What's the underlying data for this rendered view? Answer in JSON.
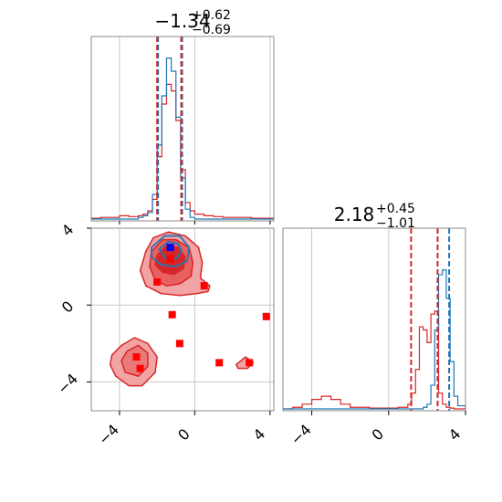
{
  "colors": {
    "blue": "#1f77b4",
    "red": "#d62728",
    "marker_red": "#ff0000",
    "marker_blue": "#0000ff",
    "grid": "#c8c8c8",
    "fill_dark": "#d62728",
    "fill_light": "#f2a3a4"
  },
  "chart_data": {
    "type": "corner",
    "grid": true,
    "parameters": [
      {
        "title_main": "−1.34",
        "title_sup": "+0.62",
        "title_sub": "−0.69",
        "range": [
          -5.5,
          4.2
        ],
        "ticks": [
          -4,
          0,
          4
        ],
        "tick_labels": [
          "−4",
          "0",
          "4"
        ],
        "quantile_lines": {
          "blue": [
            -2.0,
            -0.72
          ],
          "red": [
            -2.0,
            -0.72
          ]
        }
      },
      {
        "title_main": "2.18",
        "title_sup": "+0.45",
        "title_sub": "−1.01",
        "range": [
          -5.5,
          4.0
        ],
        "ticks": [
          -4,
          0,
          4
        ],
        "tick_labels": [
          "−4",
          "0",
          "4"
        ],
        "quantile_lines": {
          "blue": [
            2.55,
            3.15
          ],
          "red": [
            1.17,
            2.55
          ]
        }
      }
    ],
    "hist_1d_param1": {
      "bin_edges": [
        -5.5,
        -5.0,
        -4.5,
        -4.0,
        -3.5,
        -3.0,
        -2.75,
        -2.5,
        -2.25,
        -2.0,
        -1.75,
        -1.5,
        -1.25,
        -1.0,
        -0.75,
        -0.5,
        -0.25,
        0.0,
        0.5,
        1.0,
        1.5,
        2.0,
        2.5,
        3.0,
        3.5,
        4.2
      ],
      "blue": [
        0,
        0,
        0,
        0,
        0,
        0.01,
        0.02,
        0.04,
        0.15,
        0.45,
        0.75,
        0.98,
        0.9,
        0.62,
        0.25,
        0.06,
        0.01,
        0,
        0,
        0,
        0,
        0,
        0,
        0,
        0
      ],
      "red": [
        0.005,
        0.01,
        0.01,
        0.02,
        0.015,
        0.02,
        0.03,
        0.05,
        0.12,
        0.38,
        0.7,
        0.82,
        0.78,
        0.6,
        0.3,
        0.1,
        0.05,
        0.03,
        0.02,
        0.015,
        0.01,
        0.01,
        0.01,
        0.005,
        0.005
      ]
    },
    "hist_1d_param2": {
      "bin_edges": [
        -5.5,
        -5.0,
        -4.5,
        -4.0,
        -3.5,
        -3.0,
        -2.5,
        -2.0,
        -1.5,
        -1.0,
        -0.5,
        0.0,
        0.5,
        1.0,
        1.2,
        1.4,
        1.6,
        1.8,
        2.0,
        2.2,
        2.4,
        2.6,
        2.8,
        3.0,
        3.2,
        3.4,
        3.6,
        4.0
      ],
      "blue": [
        0,
        0,
        0,
        0,
        0,
        0,
        0,
        0,
        0,
        0,
        0,
        0,
        0,
        0,
        0,
        0,
        0,
        0.01,
        0.03,
        0.15,
        0.5,
        0.85,
        0.88,
        0.7,
        0.3,
        0.08,
        0.02
      ],
      "red": [
        0,
        0.01,
        0.03,
        0.06,
        0.08,
        0.06,
        0.03,
        0.01,
        0.01,
        0.005,
        0.005,
        0.005,
        0.01,
        0.03,
        0.1,
        0.25,
        0.52,
        0.5,
        0.42,
        0.6,
        0.62,
        0.1,
        0.03,
        0.01,
        0.005,
        0,
        0
      ]
    },
    "markers_red": [
      [
        -1.3,
        2.4
      ],
      [
        -2.0,
        1.2
      ],
      [
        0.5,
        1.0
      ],
      [
        -1.2,
        -0.5
      ],
      [
        -0.8,
        -2.0
      ],
      [
        -3.1,
        -2.7
      ],
      [
        -2.9,
        -3.3
      ],
      [
        1.3,
        -3.0
      ],
      [
        2.9,
        -3.0
      ],
      [
        3.8,
        -0.6
      ]
    ],
    "marker_blue": [
      -1.3,
      3.0
    ],
    "red_contours": {
      "outer": [
        [
          -2.6,
          2.8
        ],
        [
          -2.2,
          3.5
        ],
        [
          -1.4,
          3.8
        ],
        [
          -0.5,
          3.6
        ],
        [
          0.2,
          3.0
        ],
        [
          0.4,
          2.2
        ],
        [
          0.3,
          1.4
        ],
        [
          0.8,
          1.0
        ],
        [
          0.7,
          0.7
        ],
        [
          0.1,
          0.6
        ],
        [
          -0.8,
          0.5
        ],
        [
          -1.8,
          0.6
        ],
        [
          -2.6,
          1.0
        ],
        [
          -2.9,
          1.8
        ]
      ],
      "mid": [
        [
          -2.3,
          2.8
        ],
        [
          -1.7,
          3.4
        ],
        [
          -1.0,
          3.4
        ],
        [
          -0.3,
          3.0
        ],
        [
          -0.1,
          2.2
        ],
        [
          -0.2,
          1.5
        ],
        [
          -0.8,
          1.1
        ],
        [
          -1.5,
          1.0
        ],
        [
          -2.1,
          1.3
        ],
        [
          -2.4,
          2.0
        ]
      ],
      "inner": [
        [
          -2.0,
          2.6
        ],
        [
          -1.5,
          3.1
        ],
        [
          -0.9,
          3.0
        ],
        [
          -0.5,
          2.5
        ],
        [
          -0.6,
          1.9
        ],
        [
          -1.1,
          1.6
        ],
        [
          -1.7,
          1.7
        ],
        [
          -2.1,
          2.1
        ]
      ],
      "lower_outer": [
        [
          -4.4,
          -2.6
        ],
        [
          -3.9,
          -2.1
        ],
        [
          -3.2,
          -1.7
        ],
        [
          -2.5,
          -2.0
        ],
        [
          -2.0,
          -2.7
        ],
        [
          -2.1,
          -3.5
        ],
        [
          -2.8,
          -4.2
        ],
        [
          -3.5,
          -4.2
        ],
        [
          -4.2,
          -3.7
        ],
        [
          -4.5,
          -3.1
        ]
      ],
      "lower_inner": [
        [
          -3.6,
          -2.4
        ],
        [
          -3.0,
          -2.1
        ],
        [
          -2.5,
          -2.5
        ],
        [
          -2.5,
          -3.2
        ],
        [
          -3.0,
          -3.7
        ],
        [
          -3.7,
          -3.5
        ],
        [
          -3.9,
          -2.9
        ]
      ],
      "small_right": [
        [
          2.2,
          -3.1
        ],
        [
          2.7,
          -2.7
        ],
        [
          3.1,
          -3.0
        ],
        [
          2.8,
          -3.3
        ],
        [
          2.3,
          -3.3
        ]
      ]
    },
    "blue_contours": {
      "outer": [
        [
          -2.3,
          3.0
        ],
        [
          -1.6,
          3.6
        ],
        [
          -0.8,
          3.6
        ],
        [
          -0.3,
          3.0
        ],
        [
          -0.4,
          2.3
        ],
        [
          -1.0,
          2.0
        ],
        [
          -1.8,
          2.1
        ],
        [
          -2.3,
          2.5
        ]
      ],
      "inner": [
        [
          -1.9,
          2.9
        ],
        [
          -1.4,
          3.3
        ],
        [
          -0.9,
          3.2
        ],
        [
          -0.7,
          2.8
        ],
        [
          -1.0,
          2.4
        ],
        [
          -1.5,
          2.4
        ]
      ]
    }
  }
}
